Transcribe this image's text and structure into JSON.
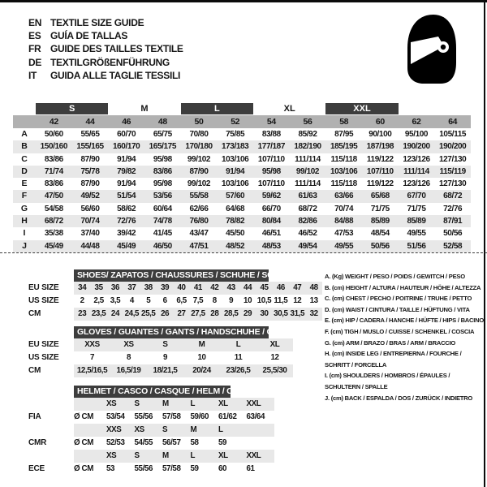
{
  "languages": [
    {
      "code": "EN",
      "title": "TEXTILE SIZE GUIDE"
    },
    {
      "code": "ES",
      "title": "GUÍA DE TALLAS"
    },
    {
      "code": "FR",
      "title": "GUIDE DES TAILLES TEXTILE"
    },
    {
      "code": "DE",
      "title": "TEXTILGRÖßENFÜHRUNG"
    },
    {
      "code": "IT",
      "title": "GUIDA ALLE TAGLIE TESSILI"
    }
  ],
  "main_table": {
    "size_bands": [
      {
        "label": "S",
        "highlight": true
      },
      {
        "label": "M",
        "highlight": false
      },
      {
        "label": "L",
        "highlight": true
      },
      {
        "label": "XL",
        "highlight": false
      },
      {
        "label": "XXL",
        "highlight": true
      }
    ],
    "columns": [
      "42",
      "44",
      "46",
      "48",
      "50",
      "52",
      "54",
      "56",
      "58",
      "60",
      "62",
      "64"
    ],
    "rows": [
      {
        "label": "A",
        "values": [
          "50/60",
          "55/65",
          "60/70",
          "65/75",
          "70/80",
          "75/85",
          "83/88",
          "85/92",
          "87/95",
          "90/100",
          "95/100",
          "105/115"
        ]
      },
      {
        "label": "B",
        "values": [
          "150/160",
          "155/165",
          "160/170",
          "165/175",
          "170/180",
          "173/183",
          "177/187",
          "182/190",
          "185/195",
          "187/198",
          "190/200",
          "190/200"
        ]
      },
      {
        "label": "C",
        "values": [
          "83/86",
          "87/90",
          "91/94",
          "95/98",
          "99/102",
          "103/106",
          "107/110",
          "111/114",
          "115/118",
          "119/122",
          "123/126",
          "127/130"
        ]
      },
      {
        "label": "D",
        "values": [
          "71/74",
          "75/78",
          "79/82",
          "83/86",
          "87/90",
          "91/94",
          "95/98",
          "99/102",
          "103/106",
          "107/110",
          "111/114",
          "115/119"
        ]
      },
      {
        "label": "E",
        "values": [
          "83/86",
          "87/90",
          "91/94",
          "95/98",
          "99/102",
          "103/106",
          "107/110",
          "111/114",
          "115/118",
          "119/122",
          "123/126",
          "127/130"
        ]
      },
      {
        "label": "F",
        "values": [
          "47/50",
          "49/52",
          "51/54",
          "53/56",
          "55/58",
          "57/60",
          "59/62",
          "61/63",
          "63/66",
          "65/68",
          "67/70",
          "68/72"
        ]
      },
      {
        "label": "G",
        "values": [
          "54/58",
          "56/60",
          "58/62",
          "60/64",
          "62/66",
          "64/68",
          "66/70",
          "68/72",
          "70/74",
          "71/75",
          "71/75",
          "72/76"
        ]
      },
      {
        "label": "H",
        "values": [
          "68/72",
          "70/74",
          "72/76",
          "74/78",
          "76/80",
          "78/82",
          "80/84",
          "82/86",
          "84/88",
          "85/89",
          "85/89",
          "87/91"
        ]
      },
      {
        "label": "I",
        "values": [
          "35/38",
          "37/40",
          "39/42",
          "41/45",
          "43/47",
          "45/50",
          "46/51",
          "46/52",
          "47/53",
          "48/54",
          "49/55",
          "50/56"
        ]
      },
      {
        "label": "J",
        "values": [
          "45/49",
          "44/48",
          "45/49",
          "46/50",
          "47/51",
          "48/52",
          "48/53",
          "49/54",
          "49/55",
          "50/56",
          "51/56",
          "52/58"
        ]
      }
    ]
  },
  "shoes_table": {
    "title": "SHOES/ ZAPATOS / CHAUSSURES / SCHUHE / SCARPE",
    "rows": [
      {
        "label": "EU SIZE",
        "values": [
          "34",
          "35",
          "36",
          "37",
          "38",
          "39",
          "40",
          "41",
          "42",
          "43",
          "44",
          "45",
          "46",
          "47",
          "48"
        ]
      },
      {
        "label": "US SIZE",
        "values": [
          "2",
          "2,5",
          "3,5",
          "4",
          "5",
          "6",
          "6,5",
          "7,5",
          "8",
          "9",
          "10",
          "10,5",
          "11,5",
          "12",
          "13"
        ]
      },
      {
        "label": "CM",
        "values": [
          "23",
          "23,5",
          "24",
          "24,5",
          "25,5",
          "26",
          "27",
          "27,5",
          "28",
          "28,5",
          "29",
          "30",
          "30,5",
          "31,5",
          "32"
        ]
      }
    ]
  },
  "gloves_table": {
    "title": "GLOVES / GUANTES / GANTS / HANDSCHUHE / GUANTI",
    "rows": [
      {
        "label": "EU SIZE",
        "values": [
          "XXS",
          "XS",
          "S",
          "M",
          "L",
          "XL"
        ]
      },
      {
        "label": "US SIZE",
        "values": [
          "7",
          "8",
          "9",
          "10",
          "11",
          "12"
        ]
      },
      {
        "label": "CM",
        "values": [
          "12,5/16,5",
          "16,5/19",
          "18/21,5",
          "20/24",
          "23/26,5",
          "25,5/30"
        ]
      }
    ]
  },
  "helmet_table": {
    "title": "HELMET / CASCO / CASQUE / HELM / CASCO",
    "groups": [
      {
        "label": "FIA",
        "prefix": "Ø CM",
        "sizes": [
          "XS",
          "S",
          "M",
          "L",
          "XL",
          "XXL"
        ],
        "values": [
          "53/54",
          "55/56",
          "57/58",
          "59/60",
          "61/62",
          "63/64"
        ]
      },
      {
        "label": "CMR",
        "prefix": "Ø CM",
        "sizes": [
          "XXS",
          "XS",
          "S",
          "M",
          "L",
          ""
        ],
        "values": [
          "52/53",
          "54/55",
          "56/57",
          "58",
          "59",
          ""
        ]
      },
      {
        "label": "ECE",
        "prefix": "Ø CM",
        "sizes": [
          "XS",
          "S",
          "M",
          "L",
          "XL",
          "XXL"
        ],
        "values": [
          "53",
          "55/56",
          "57/58",
          "59",
          "60",
          "61"
        ]
      }
    ]
  },
  "legend": {
    "items": [
      "A. (Kg) WEIGHT / PESO / POIDS / GEWITCH / PESO",
      "B. (cm) HEIGHT / ALTURA / HAUTEUR / HÖHE / ALTEZZA",
      "C. (cm) CHEST / PECHO / POITRINE / TRUHE / PETTO",
      "D. (cm) WAIST / CINTURA / TAILLE / HÜFTUNG / VITA",
      "E. (cm) HIP / CADERA / HANCHE / HÜFTE / HIPS /  BACINO",
      "F.  (cm) TIGH / MUSLO / CUISSE / SCHENKEL / COSCIA",
      "G. (cm) ARM  / BRAZO / BRAS / ARM / BRACCIO",
      "H. (cm) INSIDE LEG / ENTREPIERNA / FOURCHE / SCHRITT / FORCELLA",
      "I.  (cm) SHOULDERS / HOMBROS / ÉPAULES / SCHULTERN / SPALLE",
      "J. (cm) BACK / ESPALDA / DOS / ZURÜCK / INDIETRO"
    ]
  },
  "colors": {
    "header_bar": "#3d3d3d",
    "column_band": "#b1b1b1",
    "row_stripe": "#e8e8e8",
    "border": "#0b0b0b"
  },
  "icons": {
    "helmet": "full-face racing helmet"
  }
}
